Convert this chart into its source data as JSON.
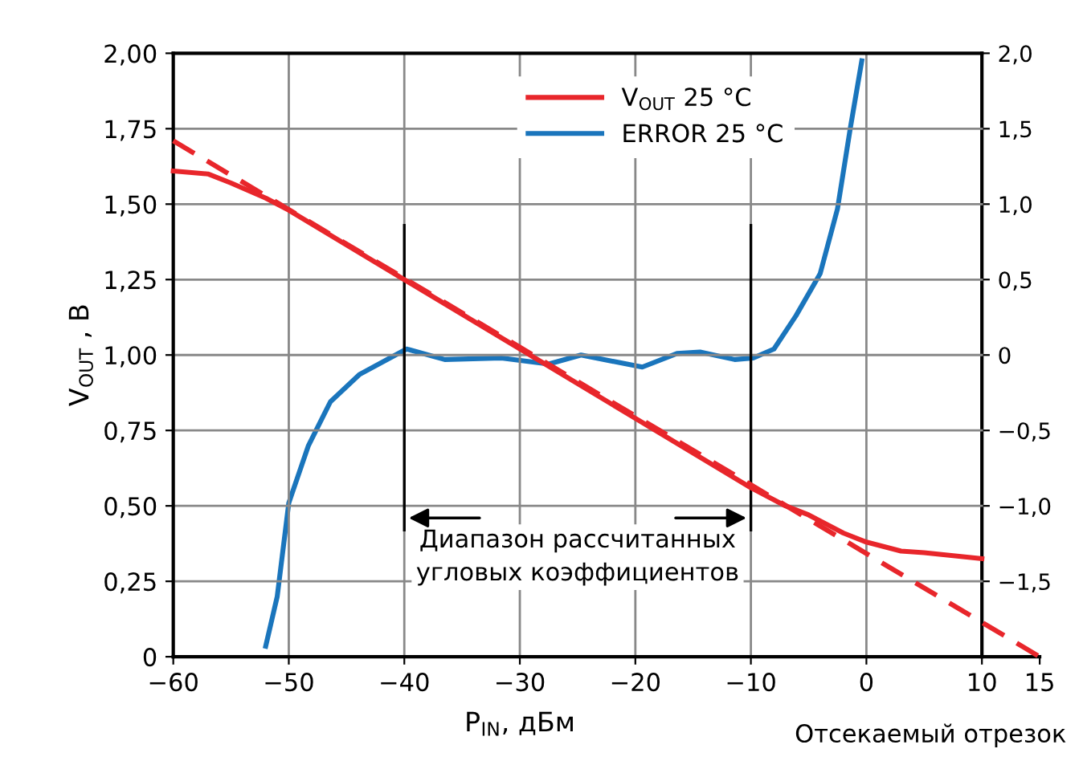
{
  "chart_data": {
    "type": "line",
    "xlabel": "P$_{IN}$, дБм",
    "ylabel": "V$_{OUT}$ , В",
    "xlim": [
      -60,
      15
    ],
    "xticks": [
      {
        "value": -60,
        "label": "−60"
      },
      {
        "value": -50,
        "label": "−50"
      },
      {
        "value": -40,
        "label": "−40"
      },
      {
        "value": -30,
        "label": "−30"
      },
      {
        "value": -20,
        "label": "−20"
      },
      {
        "value": -10,
        "label": "−10"
      },
      0,
      10,
      15
    ],
    "ylim": [
      0,
      2
    ],
    "yticks": [
      0,
      {
        "value": 0.25,
        "label": "0,25"
      },
      {
        "value": 0.5,
        "label": "0,50"
      },
      {
        "value": 0.75,
        "label": "0,75"
      },
      {
        "value": 1,
        "label": "1,00"
      },
      {
        "value": 1.25,
        "label": "1,25"
      },
      {
        "value": 1.5,
        "label": "1,50"
      },
      {
        "value": 1.75,
        "label": "1,75"
      },
      {
        "value": 2,
        "label": "2,00"
      }
    ],
    "y2lim": [
      -2,
      2
    ],
    "y2ticks": [
      {
        "value": -1.5,
        "label": "−1,5"
      },
      {
        "value": -1,
        "label": "−1,0"
      },
      {
        "value": -0.5,
        "label": "−0,5"
      },
      0,
      {
        "value": 0.5,
        "label": "0,5"
      },
      {
        "value": 1,
        "label": "1,0"
      },
      {
        "value": 1.5,
        "label": "1,5"
      },
      {
        "value": 2,
        "label": "2,0"
      }
    ],
    "grid": true,
    "legend": "top right",
    "marker": "none",
    "series": [
      {
        "name": "V$_{OUT}$ 25 °C",
        "color": "#e8262b",
        "x": [
          -60,
          -57,
          -55,
          -52,
          -50,
          -40,
          -30,
          -20,
          -10,
          -7,
          -5,
          -2,
          0,
          3,
          5,
          10
        ],
        "values": [
          1.61,
          1.6,
          1.57,
          1.52,
          1.48,
          1.25,
          1.02,
          0.79,
          0.56,
          0.5,
          0.47,
          0.41,
          0.38,
          0.35,
          0.345,
          0.325
        ]
      },
      {
        "name": "ERROR 25 °C",
        "color": "#1a75bc",
        "axis": "y2",
        "x": [
          -52,
          -51,
          -50,
          -48.3,
          -46.4,
          -43.9,
          -39.8,
          -36.5,
          -31.6,
          -27.5,
          -24.7,
          -19.4,
          -16.4,
          -14.4,
          -11.4,
          -9.8,
          -8,
          -6.1,
          -4,
          -2.5,
          -1.4,
          -0.4
        ],
        "values": [
          -1.93,
          -1.6,
          -0.98,
          -0.6,
          -0.31,
          -0.13,
          0.04,
          -0.03,
          -0.02,
          -0.06,
          0,
          -0.08,
          0.01,
          0.02,
          -0.03,
          -0.02,
          0.04,
          0.26,
          0.54,
          0.97,
          1.5,
          1.95
        ]
      },
      {
        "type": "line",
        "color": "#e8262b",
        "line_style": "dashed",
        "x": [
          -60,
          15
        ],
        "values": [
          1.71,
          0
        ]
      }
    ],
    "ref_lines": [
      {
        "axis": "x",
        "value": -40,
        "color": "#000000"
      },
      {
        "axis": "x",
        "value": -10,
        "color": "#000000"
      }
    ],
    "annotations": [
      "Диапазон рассчитанных\nугловых коэффициентов",
      {
        "text": "Отсекаемый отрезок",
        "x": 15,
        "y": 0
      }
    ]
  }
}
